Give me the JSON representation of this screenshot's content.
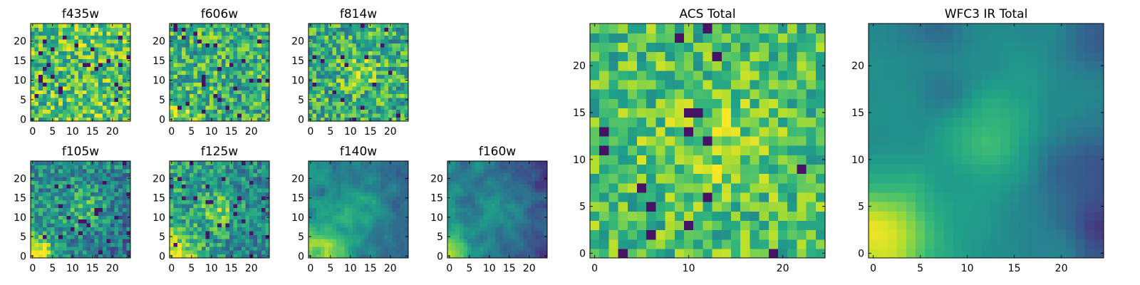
{
  "figure": {
    "background": "#ffffff",
    "colormap": "viridis"
  },
  "chart_data": [
    {
      "id": "f435w",
      "type": "heatmap",
      "title": "f435w",
      "grid_size": 25,
      "xlim": [
        -0.5,
        24.5
      ],
      "ylim": [
        -0.5,
        24.5
      ],
      "x_ticks": [
        0,
        5,
        10,
        15,
        20
      ],
      "y_ticks": [
        0,
        5,
        10,
        15,
        20
      ],
      "x_tick_labels": [
        "0",
        "5",
        "10",
        "15",
        "20"
      ],
      "y_tick_labels": [
        "0",
        "5",
        "10",
        "15",
        "20"
      ],
      "grid": false,
      "field": "uniform noise, mean 0.72, spread 0.55, no structure"
    },
    {
      "id": "f606w",
      "type": "heatmap",
      "title": "f606w",
      "grid_size": 25,
      "xlim": [
        -0.5,
        24.5
      ],
      "ylim": [
        -0.5,
        24.5
      ],
      "x_ticks": [
        0,
        5,
        10,
        15,
        20
      ],
      "y_ticks": [
        0,
        5,
        10,
        15,
        20
      ],
      "x_tick_labels": [
        "0",
        "5",
        "10",
        "15",
        "20"
      ],
      "y_tick_labels": [
        "0",
        "5",
        "10",
        "15",
        "20"
      ],
      "grid": false,
      "field": "noise mean 0.64 with bright lower-left corner"
    },
    {
      "id": "f814w",
      "type": "heatmap",
      "title": "f814w",
      "grid_size": 25,
      "xlim": [
        -0.5,
        24.5
      ],
      "ylim": [
        -0.5,
        24.5
      ],
      "x_ticks": [
        0,
        5,
        10,
        15,
        20
      ],
      "y_ticks": [
        0,
        5,
        10,
        15,
        20
      ],
      "x_tick_labels": [
        "0",
        "5",
        "10",
        "15",
        "20"
      ],
      "y_tick_labels": [
        "0",
        "5",
        "10",
        "15",
        "20"
      ],
      "grid": false,
      "field": "noise mean 0.62 with bright blob near (12,12)"
    },
    {
      "id": "f105w",
      "type": "heatmap",
      "title": "f105w",
      "grid_size": 25,
      "xlim": [
        -0.5,
        24.5
      ],
      "ylim": [
        -0.5,
        24.5
      ],
      "x_ticks": [
        0,
        5,
        10,
        15,
        20
      ],
      "y_ticks": [
        0,
        5,
        10,
        15,
        20
      ],
      "x_tick_labels": [
        "0",
        "5",
        "10",
        "15",
        "20"
      ],
      "y_tick_labels": [
        "0",
        "5",
        "10",
        "15",
        "20"
      ],
      "grid": false,
      "field": "bright lower-left corner, bright blob near (13,12), darker right side"
    },
    {
      "id": "f125w",
      "type": "heatmap",
      "title": "f125w",
      "grid_size": 25,
      "xlim": [
        -0.5,
        24.5
      ],
      "ylim": [
        -0.5,
        24.5
      ],
      "x_ticks": [
        0,
        5,
        10,
        15,
        20
      ],
      "y_ticks": [
        0,
        5,
        10,
        15,
        20
      ],
      "x_tick_labels": [
        "0",
        "5",
        "10",
        "15",
        "20"
      ],
      "y_tick_labels": [
        "0",
        "5",
        "10",
        "15",
        "20"
      ],
      "grid": false,
      "field": "bright lower-left corner, bright blob near (12,12)"
    },
    {
      "id": "f140w",
      "type": "heatmap",
      "title": "f140w",
      "grid_size": 25,
      "xlim": [
        -0.5,
        24.5
      ],
      "ylim": [
        -0.5,
        24.5
      ],
      "x_ticks": [
        0,
        5,
        10,
        15,
        20
      ],
      "y_ticks": [
        0,
        5,
        10,
        15,
        20
      ],
      "x_tick_labels": [
        "0",
        "5",
        "10",
        "15",
        "20"
      ],
      "y_tick_labels": [
        "0",
        "5",
        "10",
        "15",
        "20"
      ],
      "grid": false,
      "field": "bright bottom edge, blob near (13,12), dark right side"
    },
    {
      "id": "f160w",
      "type": "heatmap",
      "title": "f160w",
      "grid_size": 25,
      "xlim": [
        -0.5,
        24.5
      ],
      "ylim": [
        -0.5,
        24.5
      ],
      "x_ticks": [
        0,
        5,
        10,
        15,
        20
      ],
      "y_ticks": [
        0,
        5,
        10,
        15,
        20
      ],
      "x_tick_labels": [
        "0",
        "5",
        "10",
        "15",
        "20"
      ],
      "y_tick_labels": [
        "0",
        "5",
        "10",
        "15",
        "20"
      ],
      "grid": false,
      "field": "bright lower-left corner, faint blob near (14,12), dark right side"
    },
    {
      "id": "acs-total",
      "type": "heatmap",
      "title": "ACS Total",
      "grid_size": 25,
      "xlim": [
        -0.5,
        24.5
      ],
      "ylim": [
        -0.5,
        24.5
      ],
      "x_ticks": [
        0,
        10,
        20
      ],
      "y_ticks": [
        0,
        5,
        10,
        15,
        20
      ],
      "x_tick_labels": [
        "0",
        "10",
        "20"
      ],
      "y_tick_labels": [
        "0",
        "5",
        "10",
        "15",
        "20"
      ],
      "grid": false,
      "field": "noise mean 0.70 with bright region near (12,12), sparse dark pixels"
    },
    {
      "id": "wfc3-ir-total",
      "type": "heatmap",
      "title": "WFC3 IR Total",
      "grid_size": 25,
      "xlim": [
        -0.5,
        24.5
      ],
      "ylim": [
        -0.5,
        24.5
      ],
      "x_ticks": [
        0,
        5,
        10,
        15,
        20
      ],
      "y_ticks": [
        0,
        5,
        10,
        15,
        20
      ],
      "x_tick_labels": [
        "0",
        "5",
        "10",
        "15",
        "20"
      ],
      "y_tick_labels": [
        "0",
        "5",
        "10",
        "15",
        "20"
      ],
      "grid": false,
      "field": "bright lower-left corner (yellow), bright region near (13,12), dark purple lower-right and top-right areas"
    }
  ]
}
